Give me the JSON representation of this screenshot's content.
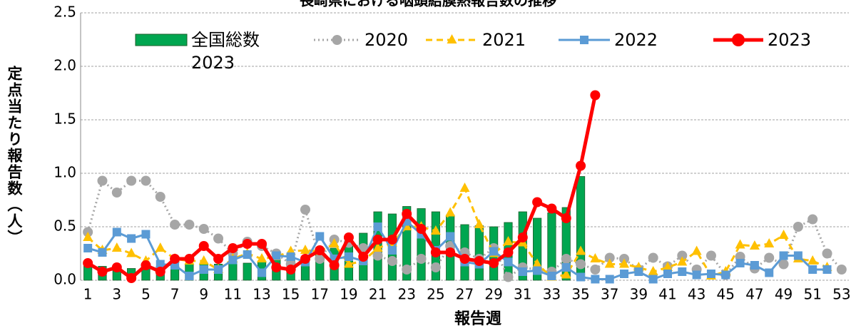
{
  "chart_data": {
    "type": "bar_line",
    "title": "長崎県における咽頭結膜熱報告数の推移",
    "x_label": "報告週",
    "y_label": "定点当たり報告数（人）",
    "categories": [
      1,
      null,
      3,
      null,
      5,
      null,
      7,
      null,
      9,
      null,
      11,
      null,
      13,
      null,
      15,
      null,
      17,
      null,
      19,
      null,
      21,
      null,
      23,
      null,
      25,
      null,
      27,
      null,
      29,
      null,
      31,
      null,
      33,
      null,
      35,
      null,
      37,
      null,
      39,
      null,
      41,
      null,
      43,
      null,
      45,
      null,
      47,
      null,
      49,
      null,
      51,
      null,
      53
    ],
    "ylim": [
      0,
      2.5
    ],
    "yticks": [
      {
        "value": 0,
        "label": "0.0"
      },
      {
        "value": 0.5,
        "label": "0.5"
      },
      {
        "value": 1,
        "label": "1.0"
      },
      {
        "value": 1.5,
        "label": "1.5"
      },
      {
        "value": 2,
        "label": "2.0"
      },
      {
        "value": 2.5,
        "label": "2.5"
      }
    ],
    "grid": true,
    "series": [
      {
        "name": "全国総数2023",
        "kind": "bar",
        "color": "#00a650",
        "values": [
          0.17,
          0.13,
          0.1,
          0.11,
          0.12,
          0.13,
          0.13,
          0.15,
          0.16,
          0.15,
          0.17,
          0.16,
          0.18,
          0.2,
          0.2,
          0.22,
          0.26,
          0.3,
          0.36,
          0.44,
          0.64,
          0.62,
          0.69,
          0.67,
          0.64,
          0.61,
          0.52,
          0.51,
          0.5,
          0.54,
          0.64,
          0.58,
          0.63,
          0.68,
          0.97,
          null,
          null,
          null,
          null,
          null,
          null,
          null,
          null,
          null,
          null,
          null,
          null,
          null,
          null,
          null,
          null,
          null,
          null
        ]
      },
      {
        "name": "2020",
        "kind": "line",
        "color": "#a6a6a6",
        "dash": "dot",
        "marker": "circle",
        "values": [
          0.45,
          0.93,
          0.82,
          0.93,
          0.93,
          0.78,
          0.52,
          0.52,
          0.48,
          0.39,
          0.25,
          0.36,
          0.32,
          0.25,
          0.15,
          0.66,
          0.2,
          0.38,
          0.35,
          0.3,
          0.23,
          0.18,
          0.1,
          0.2,
          0.12,
          0.32,
          0.26,
          0.2,
          0.3,
          0.03,
          0.12,
          0.1,
          0.08,
          0.2,
          0.15,
          0.1,
          0.21,
          0.2,
          0.1,
          0.21,
          0.13,
          0.23,
          0.1,
          0.23,
          0.05,
          0.22,
          0.11,
          0.21,
          0.15,
          0.5,
          0.57,
          0.25,
          0.1
        ]
      },
      {
        "name": "2021",
        "kind": "line",
        "color": "#ffc000",
        "dash": "dash",
        "marker": "triangle",
        "values": [
          0.4,
          0.28,
          0.3,
          0.25,
          0.18,
          0.3,
          0.2,
          0.18,
          0.18,
          0.1,
          0.2,
          0.25,
          0.2,
          0.22,
          0.27,
          0.28,
          0.27,
          0.34,
          0.15,
          0.18,
          0.3,
          0.35,
          0.5,
          0.5,
          0.46,
          0.63,
          0.86,
          0.52,
          0.25,
          0.36,
          0.35,
          0.15,
          0.03,
          0.05,
          0.27,
          0.2,
          0.15,
          0.15,
          0.12,
          0.08,
          0.12,
          0.17,
          0.27,
          0.04,
          0.08,
          0.33,
          0.32,
          0.34,
          0.42,
          0.2,
          0.18,
          0.12,
          null
        ]
      },
      {
        "name": "2022",
        "kind": "line",
        "color": "#5b9bd5",
        "dash": "solid",
        "marker": "square",
        "values": [
          0.3,
          0.26,
          0.45,
          0.39,
          0.43,
          0.15,
          0.14,
          0.04,
          0.1,
          0.1,
          0.19,
          0.24,
          0.07,
          0.23,
          0.22,
          0.17,
          0.41,
          0.2,
          0.22,
          0.18,
          0.5,
          0.28,
          0.55,
          0.43,
          0.28,
          0.41,
          0.17,
          0.15,
          0.27,
          0.17,
          0.08,
          0.09,
          0.04,
          0.12,
          0.03,
          0.01,
          0.01,
          0.06,
          0.08,
          0.01,
          0.06,
          0.08,
          0.05,
          0.06,
          0.05,
          0.16,
          0.14,
          0.07,
          0.23,
          0.23,
          0.1,
          0.1,
          null
        ]
      },
      {
        "name": "2023",
        "kind": "line",
        "color": "#ff0000",
        "dash": "solid",
        "marker": "circle",
        "width": 5,
        "values": [
          0.16,
          0.08,
          0.12,
          0.02,
          0.14,
          0.08,
          0.2,
          0.2,
          0.32,
          0.2,
          0.3,
          0.34,
          0.34,
          0.12,
          0.1,
          0.2,
          0.28,
          0.14,
          0.4,
          0.22,
          0.38,
          0.38,
          0.62,
          0.48,
          0.26,
          0.26,
          0.2,
          0.18,
          0.16,
          0.26,
          0.4,
          0.73,
          0.67,
          0.58,
          1.07,
          1.73,
          null,
          null,
          null,
          null,
          null,
          null,
          null,
          null,
          null,
          null,
          null,
          null,
          null,
          null,
          null,
          null,
          null
        ]
      }
    ]
  }
}
